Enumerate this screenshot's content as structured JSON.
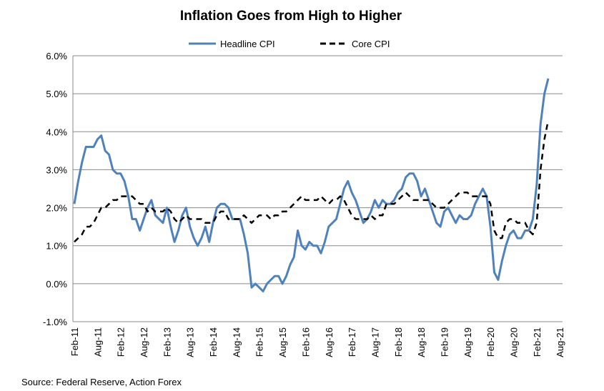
{
  "chart_data": {
    "type": "line",
    "title": "Inflation Goes from High to Higher",
    "source": "Source: Federal Reserve, Action Forex",
    "xlabel": "",
    "ylabel": "",
    "ylim": [
      -1.0,
      6.0
    ],
    "y_ticks": [
      "-1.0%",
      "0.0%",
      "1.0%",
      "2.0%",
      "3.0%",
      "4.0%",
      "5.0%",
      "6.0%"
    ],
    "x_ticks": [
      "Feb-11",
      "Aug-11",
      "Feb-12",
      "Aug-12",
      "Feb-13",
      "Aug-13",
      "Feb-14",
      "Aug-14",
      "Feb-15",
      "Aug-15",
      "Feb-16",
      "Aug-16",
      "Feb-17",
      "Aug-17",
      "Feb-18",
      "Aug-18",
      "Feb-19",
      "Aug-19",
      "Feb-20",
      "Aug-20",
      "Feb-21",
      "Aug-21"
    ],
    "grid": true,
    "legend_position": "top-center",
    "series": [
      {
        "name": "Headline CPI",
        "color": "#4f81bd",
        "style": "solid",
        "values": [
          2.1,
          2.7,
          3.2,
          3.6,
          3.6,
          3.6,
          3.8,
          3.9,
          3.5,
          3.4,
          3.0,
          2.9,
          2.9,
          2.7,
          2.3,
          1.7,
          1.7,
          1.4,
          1.7,
          2.0,
          2.2,
          1.8,
          1.7,
          1.6,
          2.0,
          1.5,
          1.1,
          1.4,
          1.8,
          2.0,
          1.5,
          1.2,
          1.0,
          1.2,
          1.5,
          1.1,
          1.6,
          2.0,
          2.1,
          2.1,
          2.0,
          1.7,
          1.7,
          1.7,
          1.3,
          0.8,
          -0.1,
          0.0,
          -0.1,
          -0.2,
          0.0,
          0.1,
          0.2,
          0.2,
          0.0,
          0.2,
          0.5,
          0.7,
          1.4,
          1.0,
          0.9,
          1.1,
          1.0,
          1.0,
          0.8,
          1.1,
          1.5,
          1.6,
          1.7,
          2.1,
          2.5,
          2.7,
          2.4,
          2.2,
          1.9,
          1.6,
          1.7,
          1.9,
          2.2,
          2.0,
          2.2,
          2.1,
          2.1,
          2.2,
          2.4,
          2.5,
          2.8,
          2.9,
          2.9,
          2.7,
          2.3,
          2.5,
          2.2,
          1.9,
          1.6,
          1.5,
          1.9,
          2.0,
          1.8,
          1.6,
          1.8,
          1.7,
          1.7,
          1.8,
          2.1,
          2.3,
          2.5,
          2.3,
          1.5,
          0.3,
          0.1,
          0.6,
          1.0,
          1.3,
          1.4,
          1.2,
          1.2,
          1.4,
          1.4,
          1.7,
          2.6,
          4.2,
          5.0,
          5.4
        ]
      },
      {
        "name": "Core CPI",
        "color": "#000000",
        "style": "dashed",
        "values": [
          1.1,
          1.2,
          1.3,
          1.5,
          1.5,
          1.6,
          1.8,
          2.0,
          2.0,
          2.1,
          2.2,
          2.2,
          2.3,
          2.3,
          2.3,
          2.3,
          2.2,
          2.1,
          2.1,
          1.9,
          2.0,
          1.9,
          1.9,
          1.9,
          2.0,
          1.9,
          1.7,
          1.6,
          1.7,
          1.8,
          1.7,
          1.7,
          1.7,
          1.7,
          1.6,
          1.6,
          1.6,
          1.8,
          1.9,
          1.9,
          1.7,
          1.7,
          1.7,
          1.7,
          1.8,
          1.7,
          1.6,
          1.7,
          1.8,
          1.8,
          1.8,
          1.7,
          1.8,
          1.8,
          1.9,
          1.9,
          2.0,
          2.1,
          2.2,
          2.3,
          2.2,
          2.2,
          2.2,
          2.2,
          2.3,
          2.2,
          2.1,
          2.2,
          2.2,
          2.3,
          2.2,
          2.0,
          1.8,
          1.7,
          1.7,
          1.7,
          1.7,
          1.8,
          1.7,
          1.8,
          1.8,
          2.1,
          2.1,
          2.1,
          2.2,
          2.3,
          2.4,
          2.3,
          2.2,
          2.2,
          2.2,
          2.2,
          2.2,
          2.1,
          2.0,
          2.0,
          2.0,
          2.1,
          2.2,
          2.3,
          2.4,
          2.4,
          2.4,
          2.3,
          2.3,
          2.3,
          2.3,
          2.3,
          2.1,
          1.4,
          1.2,
          1.2,
          1.6,
          1.7,
          1.7,
          1.6,
          1.6,
          1.6,
          1.4,
          1.3,
          1.6,
          3.0,
          3.8,
          4.3
        ]
      }
    ]
  }
}
